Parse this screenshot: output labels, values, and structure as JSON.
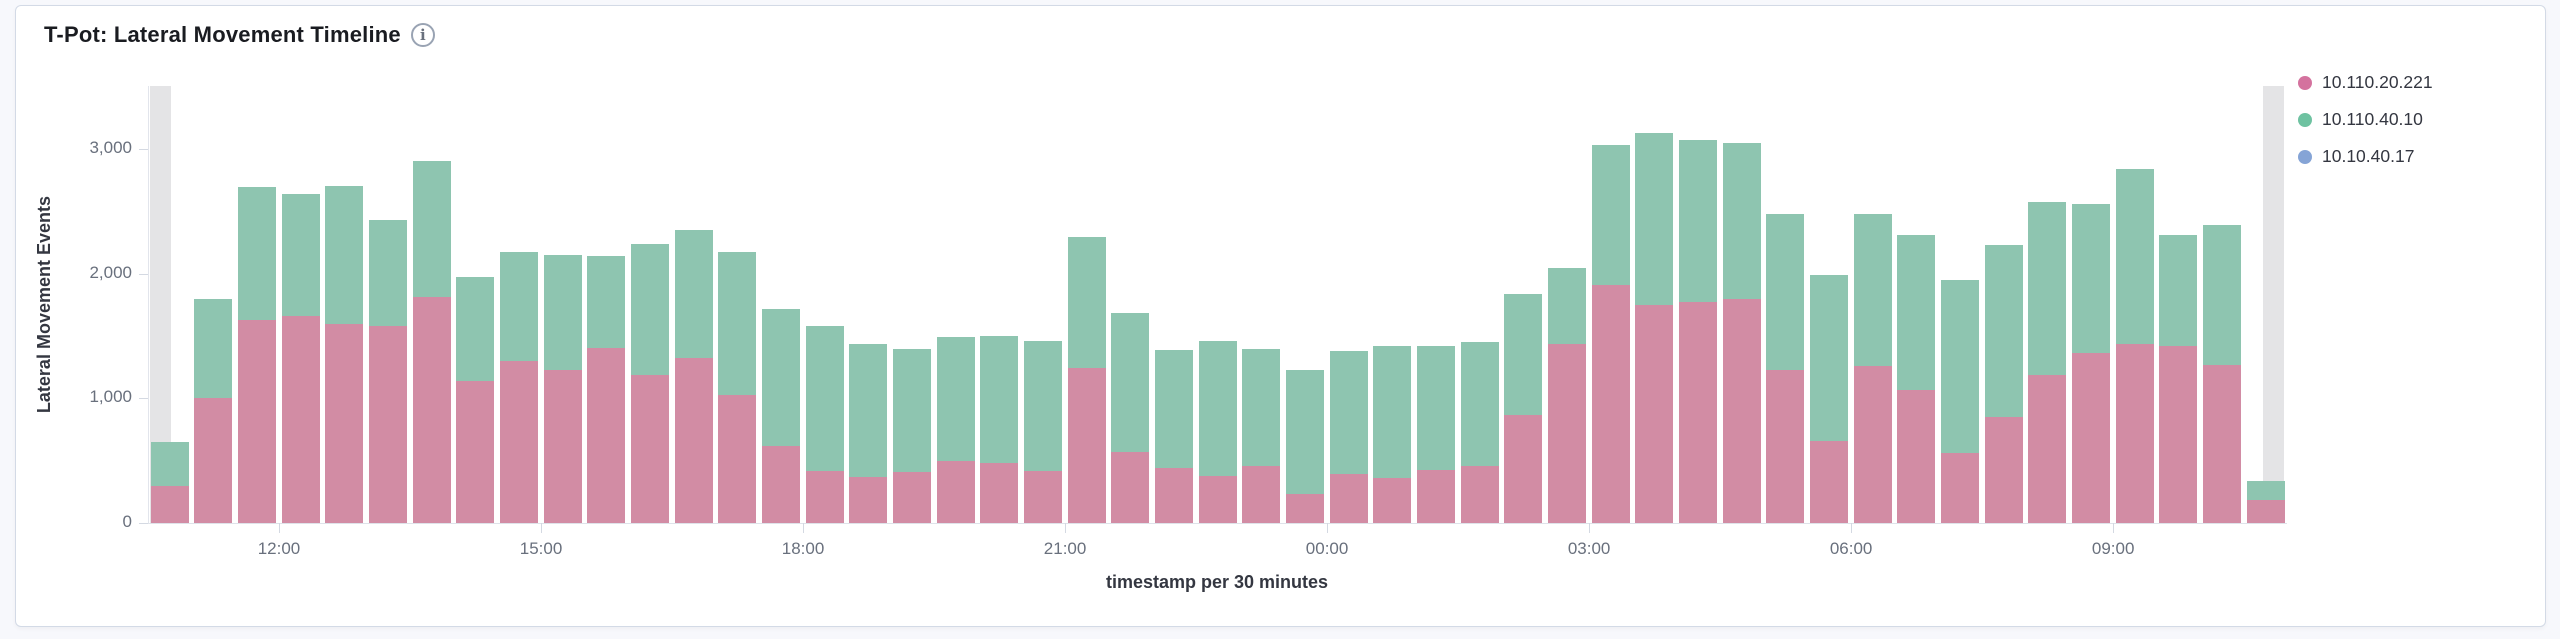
{
  "panel": {
    "title": "T-Pot: Lateral Movement Timeline",
    "info_icon_glyph": "i",
    "background": "#ffffff",
    "border_color": "#d3dae6"
  },
  "legend": {
    "position": "top-right",
    "items": [
      {
        "label": "10.110.20.221",
        "color": "#d4729e"
      },
      {
        "label": "10.110.40.10",
        "color": "#6ec2a1"
      },
      {
        "label": "10.10.40.17",
        "color": "#85a4d6"
      }
    ]
  },
  "chart_data": {
    "type": "bar",
    "stacked": true,
    "title": "T-Pot: Lateral Movement Timeline",
    "xlabel": "timestamp per 30 minutes",
    "ylabel": "Lateral Movement Events",
    "ylim": [
      0,
      3510
    ],
    "grid": false,
    "legend_position": "top-right",
    "bucket_interval_minutes": 30,
    "categories": [
      "10:30",
      "11:00",
      "11:30",
      "12:00",
      "12:30",
      "13:00",
      "13:30",
      "14:00",
      "14:30",
      "15:00",
      "15:30",
      "16:00",
      "16:30",
      "17:00",
      "17:30",
      "18:00",
      "18:30",
      "19:00",
      "19:30",
      "20:00",
      "20:30",
      "21:00",
      "21:30",
      "22:00",
      "22:30",
      "23:00",
      "23:30",
      "00:00",
      "00:30",
      "01:00",
      "01:30",
      "02:00",
      "02:30",
      "03:00",
      "03:30",
      "04:00",
      "04:30",
      "05:00",
      "05:30",
      "06:00",
      "06:30",
      "07:00",
      "07:30",
      "08:00",
      "08:30",
      "09:00",
      "09:30",
      "10:00",
      "10:30"
    ],
    "series": [
      {
        "name": "10.110.20.221",
        "color": "#d28ca4",
        "values": [
          300,
          1000,
          1630,
          1665,
          1600,
          1585,
          1815,
          1140,
          1305,
          1230,
          1405,
          1185,
          1325,
          1030,
          615,
          420,
          370,
          410,
          500,
          480,
          420,
          1245,
          570,
          445,
          375,
          460,
          230,
          390,
          360,
          425,
          455,
          865,
          1440,
          1910,
          1750,
          1775,
          1800,
          1225,
          660,
          1265,
          1070,
          560,
          850,
          1185,
          1365,
          1440,
          1420,
          1270,
          185
        ]
      },
      {
        "name": "10.110.40.10",
        "color": "#8ec5b0",
        "values": [
          350,
          800,
          1070,
          975,
          1110,
          845,
          1095,
          835,
          870,
          920,
          740,
          1055,
          1030,
          1145,
          1100,
          1160,
          1065,
          985,
          990,
          1025,
          1045,
          1050,
          1115,
          945,
          1085,
          940,
          995,
          995,
          1065,
          995,
          1000,
          975,
          605,
          1130,
          1380,
          1300,
          1250,
          1260,
          1330,
          1220,
          1240,
          1395,
          1380,
          1395,
          1200,
          1405,
          890,
          1125,
          155
        ]
      },
      {
        "name": "10.10.40.17",
        "color": "#a9bcdf",
        "values": [
          0,
          0,
          0,
          0,
          0,
          0,
          0,
          0,
          0,
          0,
          0,
          0,
          0,
          0,
          0,
          0,
          0,
          0,
          0,
          0,
          0,
          0,
          0,
          0,
          0,
          0,
          0,
          0,
          0,
          0,
          0,
          0,
          0,
          0,
          0,
          0,
          0,
          0,
          0,
          0,
          0,
          0,
          0,
          0,
          0,
          0,
          0,
          0,
          0
        ]
      }
    ],
    "x_ticks": [
      {
        "index": 3,
        "label": "12:00"
      },
      {
        "index": 9,
        "label": "15:00"
      },
      {
        "index": 15,
        "label": "18:00"
      },
      {
        "index": 21,
        "label": "21:00"
      },
      {
        "index": 27,
        "label": "00:00"
      },
      {
        "index": 33,
        "label": "03:00"
      },
      {
        "index": 39,
        "label": "06:00"
      },
      {
        "index": 45,
        "label": "09:00"
      }
    ],
    "y_ticks": [
      {
        "value": 0,
        "label": "0"
      },
      {
        "value": 1000,
        "label": "1,000"
      },
      {
        "value": 2000,
        "label": "2,000"
      },
      {
        "value": 3000,
        "label": "3,000"
      }
    ],
    "partial_buckets": {
      "indices": [
        0,
        48
      ],
      "band_color": "#e4e4e6"
    }
  }
}
